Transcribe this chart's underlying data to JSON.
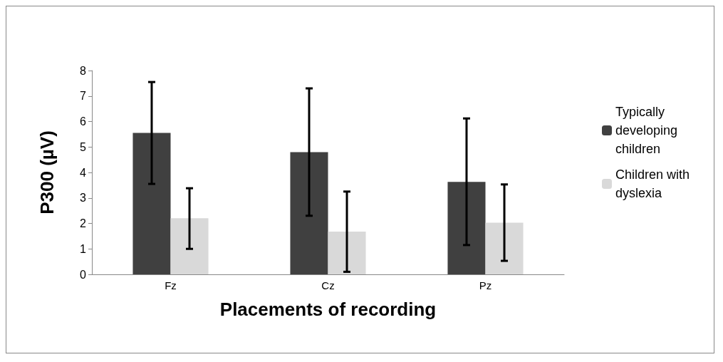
{
  "chart_data": {
    "type": "bar",
    "xlabel": "Placements of recording",
    "ylabel": "P300 (µV)",
    "categories": [
      "Fz",
      "Cz",
      "Pz"
    ],
    "series": [
      {
        "name": "Typically developing children",
        "color": "#404040",
        "values": [
          5.55,
          4.8,
          3.63
        ],
        "errors": [
          [
            3.55,
            7.55
          ],
          [
            2.3,
            7.3
          ],
          [
            1.15,
            6.12
          ]
        ]
      },
      {
        "name": "Children with dyslexia",
        "color": "#d9d9d9",
        "values": [
          2.2,
          1.68,
          2.03
        ],
        "errors": [
          [
            1.0,
            3.38
          ],
          [
            0.1,
            3.25
          ],
          [
            0.53,
            3.53
          ]
        ]
      }
    ],
    "ylim": [
      0,
      8
    ],
    "yticks": [
      0,
      1,
      2,
      3,
      4,
      5,
      6,
      7,
      8
    ],
    "grid": false,
    "legend": "right"
  }
}
